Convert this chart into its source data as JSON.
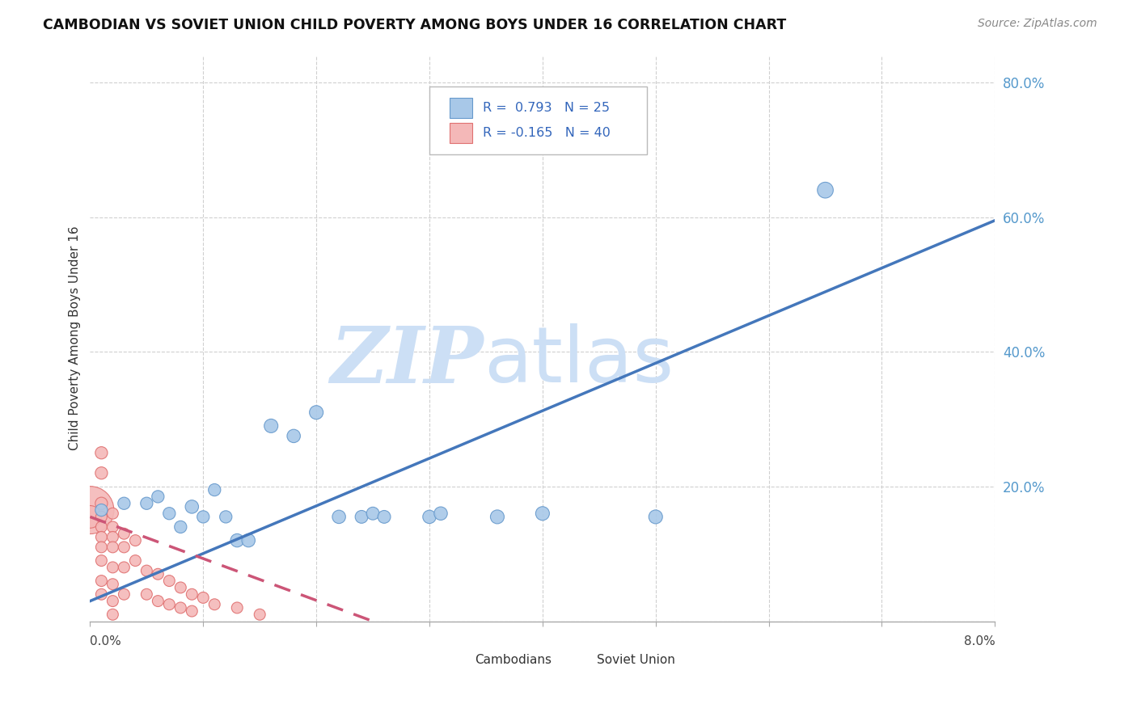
{
  "title": "CAMBODIAN VS SOVIET UNION CHILD POVERTY AMONG BOYS UNDER 16 CORRELATION CHART",
  "source": "Source: ZipAtlas.com",
  "ylabel": "Child Poverty Among Boys Under 16",
  "x_min": 0.0,
  "x_max": 0.08,
  "y_min": 0.0,
  "y_max": 0.84,
  "y_ticks": [
    0.0,
    0.2,
    0.4,
    0.6,
    0.8
  ],
  "y_tick_labels": [
    "",
    "20.0%",
    "40.0%",
    "60.0%",
    "80.0%"
  ],
  "x_ticks": [
    0.0,
    0.01,
    0.02,
    0.03,
    0.04,
    0.05,
    0.06,
    0.07,
    0.08
  ],
  "cambodian_R": 0.793,
  "cambodian_N": 25,
  "soviet_R": -0.165,
  "soviet_N": 40,
  "cambodian_color": "#a8c8e8",
  "soviet_color": "#f4b8b8",
  "cambodian_edge": "#6699cc",
  "soviet_edge": "#e07070",
  "cambodian_line_color": "#4477bb",
  "soviet_line_color": "#cc5577",
  "background_color": "#ffffff",
  "grid_color": "#d0d0d0",
  "camb_line_x0": 0.0,
  "camb_line_y0": 0.03,
  "camb_line_x1": 0.08,
  "camb_line_y1": 0.595,
  "sov_line_x0": 0.0,
  "sov_line_y0": 0.155,
  "sov_line_x1": 0.025,
  "sov_line_y1": 0.0,
  "cambodian_points": [
    [
      0.001,
      0.165
    ],
    [
      0.003,
      0.175
    ],
    [
      0.005,
      0.175
    ],
    [
      0.006,
      0.185
    ],
    [
      0.007,
      0.16
    ],
    [
      0.008,
      0.14
    ],
    [
      0.009,
      0.17
    ],
    [
      0.01,
      0.155
    ],
    [
      0.011,
      0.195
    ],
    [
      0.012,
      0.155
    ],
    [
      0.013,
      0.12
    ],
    [
      0.014,
      0.12
    ],
    [
      0.016,
      0.29
    ],
    [
      0.018,
      0.275
    ],
    [
      0.02,
      0.31
    ],
    [
      0.022,
      0.155
    ],
    [
      0.024,
      0.155
    ],
    [
      0.025,
      0.16
    ],
    [
      0.026,
      0.155
    ],
    [
      0.03,
      0.155
    ],
    [
      0.031,
      0.16
    ],
    [
      0.036,
      0.155
    ],
    [
      0.04,
      0.16
    ],
    [
      0.05,
      0.155
    ],
    [
      0.065,
      0.64
    ]
  ],
  "soviet_points": [
    [
      0.0,
      0.165
    ],
    [
      0.0,
      0.155
    ],
    [
      0.001,
      0.25
    ],
    [
      0.001,
      0.22
    ],
    [
      0.001,
      0.175
    ],
    [
      0.001,
      0.155
    ],
    [
      0.001,
      0.14
    ],
    [
      0.001,
      0.125
    ],
    [
      0.001,
      0.11
    ],
    [
      0.001,
      0.09
    ],
    [
      0.001,
      0.06
    ],
    [
      0.001,
      0.04
    ],
    [
      0.002,
      0.16
    ],
    [
      0.002,
      0.14
    ],
    [
      0.002,
      0.125
    ],
    [
      0.002,
      0.11
    ],
    [
      0.002,
      0.08
    ],
    [
      0.002,
      0.055
    ],
    [
      0.002,
      0.03
    ],
    [
      0.002,
      0.01
    ],
    [
      0.003,
      0.13
    ],
    [
      0.003,
      0.11
    ],
    [
      0.003,
      0.08
    ],
    [
      0.003,
      0.04
    ],
    [
      0.004,
      0.12
    ],
    [
      0.004,
      0.09
    ],
    [
      0.005,
      0.075
    ],
    [
      0.005,
      0.04
    ],
    [
      0.006,
      0.07
    ],
    [
      0.006,
      0.03
    ],
    [
      0.007,
      0.06
    ],
    [
      0.007,
      0.025
    ],
    [
      0.008,
      0.05
    ],
    [
      0.008,
      0.02
    ],
    [
      0.009,
      0.04
    ],
    [
      0.009,
      0.015
    ],
    [
      0.01,
      0.035
    ],
    [
      0.011,
      0.025
    ],
    [
      0.013,
      0.02
    ],
    [
      0.015,
      0.01
    ]
  ],
  "cambodian_sizes": [
    120,
    120,
    120,
    120,
    120,
    120,
    140,
    120,
    120,
    120,
    140,
    140,
    150,
    140,
    150,
    140,
    130,
    130,
    130,
    140,
    140,
    150,
    150,
    150,
    200
  ],
  "soviet_sizes": [
    1800,
    400,
    120,
    120,
    120,
    100,
    100,
    100,
    100,
    100,
    100,
    100,
    100,
    100,
    100,
    100,
    100,
    100,
    100,
    100,
    100,
    100,
    100,
    100,
    100,
    100,
    100,
    100,
    100,
    100,
    100,
    100,
    100,
    100,
    100,
    100,
    100,
    100,
    100,
    100
  ]
}
